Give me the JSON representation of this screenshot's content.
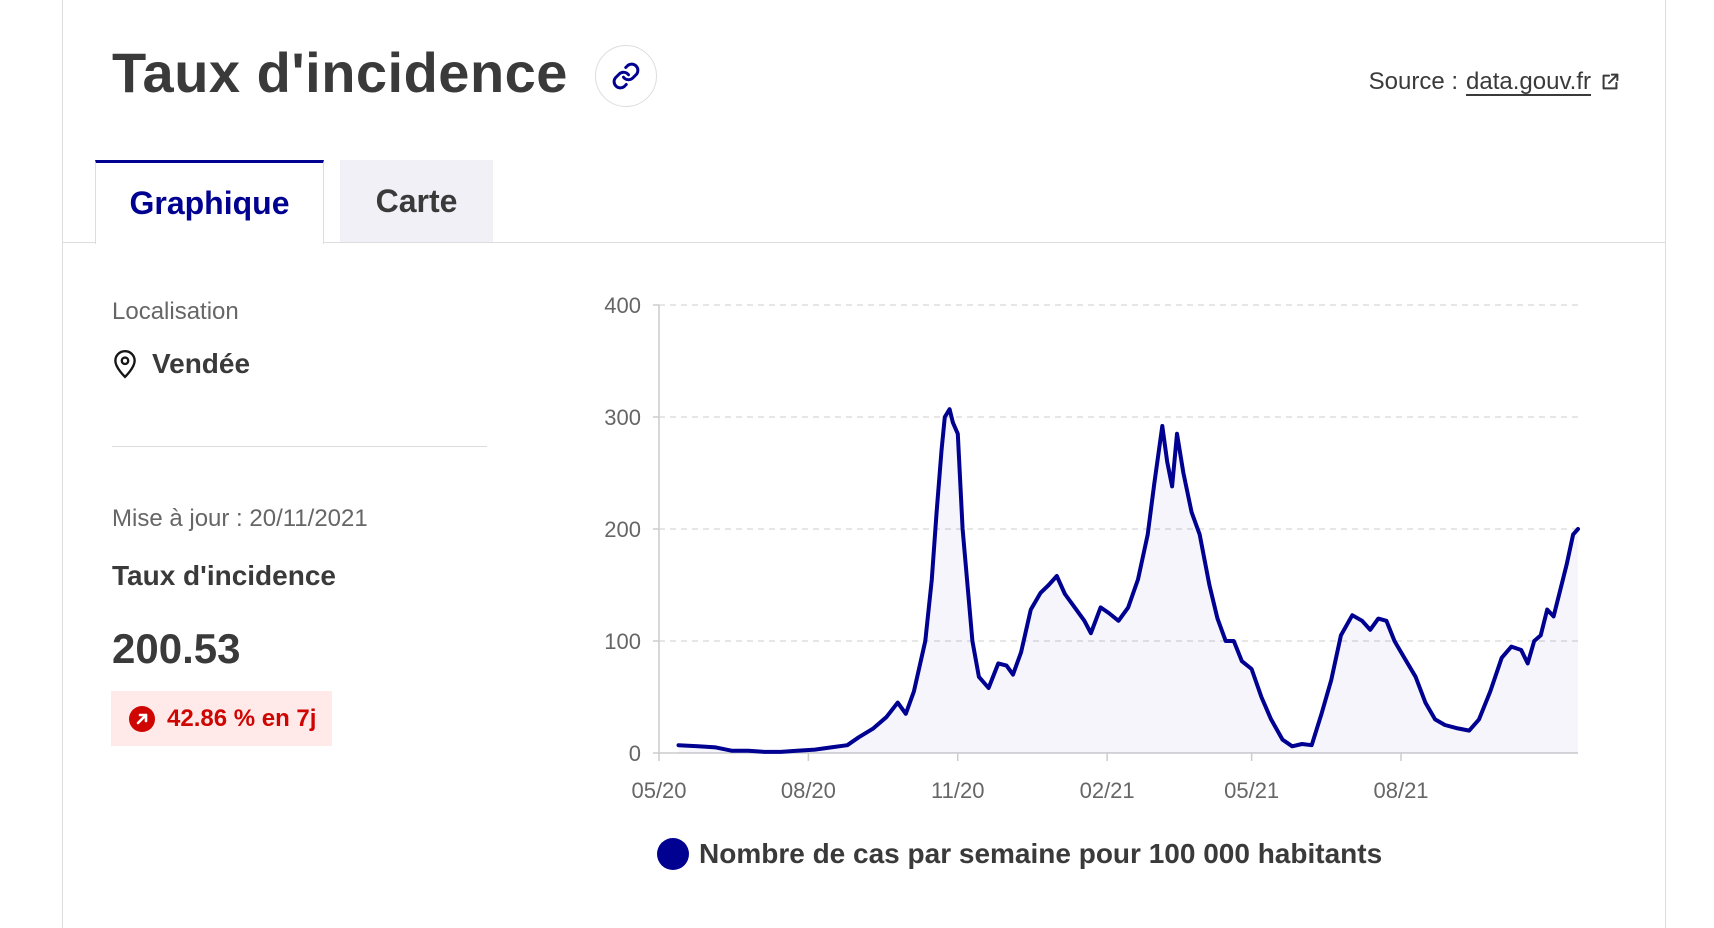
{
  "header": {
    "title": "Taux d'incidence",
    "source_prefix": "Source :",
    "source_link": "data.gouv.fr"
  },
  "tabs": [
    {
      "label": "Graphique",
      "active": true
    },
    {
      "label": "Carte",
      "active": false
    }
  ],
  "sidebar": {
    "location_label": "Localisation",
    "location_value": "Vendée",
    "updated": "Mise à jour : 20/11/2021",
    "metric_title": "Taux d'incidence",
    "metric_value": "200.53",
    "trend": "42.86 % en 7j"
  },
  "colors": {
    "accent": "#000091",
    "trend_up": "#ce0500",
    "trend_bg": "#ffe9e9"
  },
  "icons": {
    "copy_link": "link-icon",
    "external": "external-link-icon",
    "location": "map-pin-icon",
    "trend": "arrow-up-right-icon"
  },
  "chart_data": {
    "type": "area",
    "title": "",
    "xlabel": "",
    "ylabel": "",
    "ylim": [
      0,
      400
    ],
    "y_ticks": [
      0,
      100,
      200,
      300,
      400
    ],
    "x_ticks": [
      "05/20",
      "08/20",
      "11/20",
      "02/21",
      "05/21",
      "08/21"
    ],
    "grid": "horizontal dashed",
    "legend_position": "bottom",
    "series": [
      {
        "name": "Nombre de cas par semaine pour 100 000 habitants",
        "points": [
          [
            "2020-05-13",
            7
          ],
          [
            "2020-05-25",
            6
          ],
          [
            "2020-06-05",
            5
          ],
          [
            "2020-06-15",
            2
          ],
          [
            "2020-06-25",
            2
          ],
          [
            "2020-07-05",
            1
          ],
          [
            "2020-07-15",
            1
          ],
          [
            "2020-07-25",
            2
          ],
          [
            "2020-08-05",
            3
          ],
          [
            "2020-08-15",
            5
          ],
          [
            "2020-08-25",
            7
          ],
          [
            "2020-09-01",
            14
          ],
          [
            "2020-09-10",
            22
          ],
          [
            "2020-09-18",
            32
          ],
          [
            "2020-09-25",
            45
          ],
          [
            "2020-09-30",
            35
          ],
          [
            "2020-10-05",
            55
          ],
          [
            "2020-10-12",
            100
          ],
          [
            "2020-10-16",
            155
          ],
          [
            "2020-10-19",
            215
          ],
          [
            "2020-10-22",
            270
          ],
          [
            "2020-10-24",
            300
          ],
          [
            "2020-10-27",
            307
          ],
          [
            "2020-10-29",
            295
          ],
          [
            "2020-11-01",
            285
          ],
          [
            "2020-11-04",
            200
          ],
          [
            "2020-11-07",
            150
          ],
          [
            "2020-11-10",
            100
          ],
          [
            "2020-11-14",
            68
          ],
          [
            "2020-11-20",
            58
          ],
          [
            "2020-11-26",
            80
          ],
          [
            "2020-12-01",
            78
          ],
          [
            "2020-12-05",
            70
          ],
          [
            "2020-12-10",
            90
          ],
          [
            "2020-12-16",
            128
          ],
          [
            "2020-12-22",
            143
          ],
          [
            "2020-12-27",
            150
          ],
          [
            "2021-01-01",
            158
          ],
          [
            "2021-01-06",
            142
          ],
          [
            "2021-01-12",
            130
          ],
          [
            "2021-01-18",
            118
          ],
          [
            "2021-01-22",
            107
          ],
          [
            "2021-01-28",
            130
          ],
          [
            "2021-02-02",
            125
          ],
          [
            "2021-02-08",
            118
          ],
          [
            "2021-02-14",
            130
          ],
          [
            "2021-02-20",
            155
          ],
          [
            "2021-02-26",
            195
          ],
          [
            "2021-03-02",
            240
          ],
          [
            "2021-03-07",
            292
          ],
          [
            "2021-03-10",
            260
          ],
          [
            "2021-03-13",
            238
          ],
          [
            "2021-03-16",
            285
          ],
          [
            "2021-03-20",
            250
          ],
          [
            "2021-03-25",
            215
          ],
          [
            "2021-03-30",
            195
          ],
          [
            "2021-04-05",
            150
          ],
          [
            "2021-04-10",
            120
          ],
          [
            "2021-04-15",
            100
          ],
          [
            "2021-04-20",
            100
          ],
          [
            "2021-04-25",
            82
          ],
          [
            "2021-05-01",
            75
          ],
          [
            "2021-05-07",
            50
          ],
          [
            "2021-05-13",
            30
          ],
          [
            "2021-05-20",
            12
          ],
          [
            "2021-05-26",
            6
          ],
          [
            "2021-06-01",
            8
          ],
          [
            "2021-06-07",
            7
          ],
          [
            "2021-06-13",
            35
          ],
          [
            "2021-06-19",
            65
          ],
          [
            "2021-06-25",
            105
          ],
          [
            "2021-07-02",
            123
          ],
          [
            "2021-07-08",
            118
          ],
          [
            "2021-07-13",
            110
          ],
          [
            "2021-07-18",
            120
          ],
          [
            "2021-07-23",
            118
          ],
          [
            "2021-07-28",
            100
          ],
          [
            "2021-08-03",
            85
          ],
          [
            "2021-08-10",
            68
          ],
          [
            "2021-08-16",
            45
          ],
          [
            "2021-08-22",
            30
          ],
          [
            "2021-08-28",
            25
          ],
          [
            "2021-09-05",
            22
          ],
          [
            "2021-09-12",
            20
          ],
          [
            "2021-09-18",
            30
          ],
          [
            "2021-09-25",
            55
          ],
          [
            "2021-10-02",
            85
          ],
          [
            "2021-10-08",
            95
          ],
          [
            "2021-10-14",
            92
          ],
          [
            "2021-10-18",
            80
          ],
          [
            "2021-10-22",
            100
          ],
          [
            "2021-10-26",
            105
          ],
          [
            "2021-10-30",
            128
          ],
          [
            "2021-11-03",
            122
          ],
          [
            "2021-11-07",
            145
          ],
          [
            "2021-11-11",
            168
          ],
          [
            "2021-11-15",
            195
          ],
          [
            "2021-11-18",
            200
          ]
        ]
      }
    ]
  }
}
